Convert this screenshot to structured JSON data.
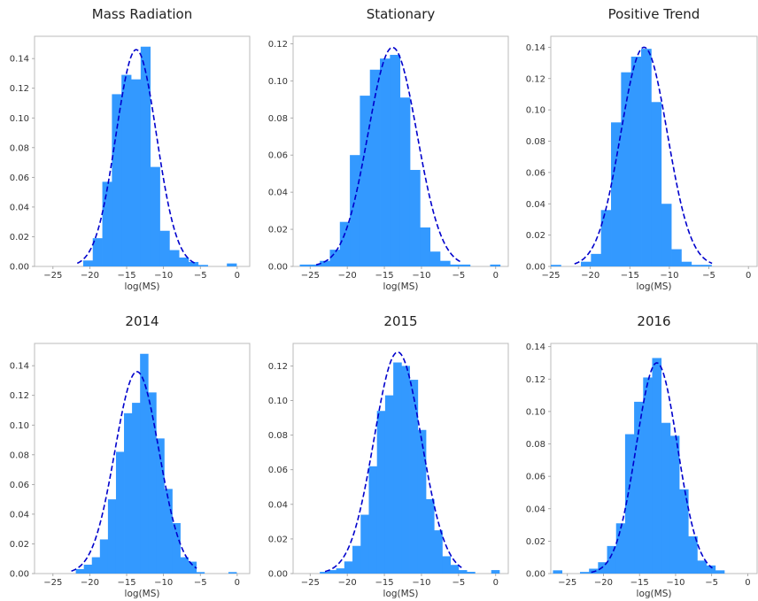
{
  "figure": {
    "bar_color": "#3399ff",
    "fit_color": "#0000cc",
    "axes_color": "#bbbbbb"
  },
  "chart_data": [
    {
      "type": "bar",
      "title": "Mass Radiation",
      "xlabel": "log(MS)",
      "ylabel": "",
      "xlim": [
        -27.5,
        1.7
      ],
      "ylim": [
        0,
        0.155
      ],
      "xticks": [
        -25,
        -20,
        -15,
        -10,
        -5,
        0
      ],
      "yticks": [
        0.0,
        0.02,
        0.04,
        0.06,
        0.08,
        0.1,
        0.12,
        0.14
      ],
      "bin_width": 1.3,
      "bin_edges": [
        -20.9,
        -19.6,
        -18.3,
        -17.0,
        -15.7,
        -14.4,
        -13.1,
        -11.8,
        -10.5,
        -9.2,
        -7.9,
        -6.6,
        -5.3,
        -4.0,
        -2.7,
        -1.4,
        -0.1
      ],
      "values": [
        0.004,
        0.019,
        0.057,
        0.116,
        0.129,
        0.126,
        0.148,
        0.067,
        0.024,
        0.011,
        0.006,
        0.003,
        0.001,
        0.0,
        0.0,
        0.002
      ],
      "fit": {
        "type": "normal",
        "mean": -13.7,
        "peak": 0.146,
        "sigma": 2.75,
        "xrange": [
          -21.7,
          -5.6
        ]
      }
    },
    {
      "type": "bar",
      "title": "Stationary",
      "xlabel": "log(MS)",
      "ylabel": "",
      "xlim": [
        -27.3,
        1.7
      ],
      "ylim": [
        0,
        0.124
      ],
      "xticks": [
        -25,
        -20,
        -15,
        -10,
        -5,
        0
      ],
      "yticks": [
        0.0,
        0.02,
        0.04,
        0.06,
        0.08,
        0.1,
        0.12
      ],
      "bin_width": 1.35,
      "bin_edges": [
        -26.4,
        -25.05,
        -23.7,
        -22.35,
        -21.0,
        -19.65,
        -18.3,
        -16.95,
        -15.6,
        -14.25,
        -12.9,
        -11.55,
        -10.2,
        -8.85,
        -7.5,
        -6.15,
        -4.8,
        -3.45,
        -2.1,
        -0.75,
        0.6
      ],
      "values": [
        0.001,
        0.001,
        0.003,
        0.009,
        0.024,
        0.06,
        0.092,
        0.106,
        0.112,
        0.114,
        0.091,
        0.052,
        0.021,
        0.008,
        0.003,
        0.001,
        0.001,
        0.0,
        0.0,
        0.001
      ],
      "fit": {
        "type": "normal",
        "mean": -13.9,
        "peak": 0.118,
        "sigma": 3.3,
        "xrange": [
          -24.2,
          -4.8
        ]
      }
    },
    {
      "type": "bar",
      "title": "Positive Trend",
      "xlabel": "log(MS)",
      "ylabel": "",
      "xlim": [
        -25.0,
        1.1
      ],
      "ylim": [
        0,
        0.147
      ],
      "xticks": [
        -25,
        -20,
        -15,
        -10,
        -5,
        0
      ],
      "yticks": [
        0.0,
        0.02,
        0.04,
        0.06,
        0.08,
        0.1,
        0.12,
        0.14
      ],
      "bin_width": 1.27,
      "bin_edges": [
        -25.0,
        -23.73,
        -22.46,
        -21.19,
        -19.92,
        -18.65,
        -17.38,
        -16.11,
        -14.84,
        -13.57,
        -12.3,
        -11.03,
        -9.76,
        -8.49,
        -7.22,
        -5.95,
        -4.68,
        -3.41,
        -2.14
      ],
      "values": [
        0.001,
        0.0,
        0.0,
        0.003,
        0.008,
        0.036,
        0.092,
        0.124,
        0.134,
        0.139,
        0.105,
        0.04,
        0.011,
        0.003,
        0.001,
        0.001,
        0.0,
        0.0
      ],
      "fit": {
        "type": "normal",
        "mean": -13.2,
        "peak": 0.14,
        "sigma": 2.95,
        "xrange": [
          -22.0,
          -4.6
        ]
      }
    },
    {
      "type": "bar",
      "title": "2014",
      "xlabel": "log(MS)",
      "ylabel": "",
      "xlim": [
        -27.5,
        1.7
      ],
      "ylim": [
        0,
        0.155
      ],
      "xticks": [
        -25,
        -20,
        -15,
        -10,
        -5,
        0
      ],
      "yticks": [
        0.0,
        0.02,
        0.04,
        0.06,
        0.08,
        0.1,
        0.12,
        0.14
      ],
      "bin_width": 1.09,
      "bin_edges": [
        -21.9,
        -20.81,
        -19.72,
        -18.63,
        -17.54,
        -16.45,
        -15.36,
        -14.27,
        -13.18,
        -12.09,
        -11.0,
        -9.91,
        -8.82,
        -7.73,
        -6.64,
        -5.55,
        -4.46,
        -3.37,
        -2.28,
        -1.19,
        -0.1,
        1.0
      ],
      "values": [
        0.003,
        0.006,
        0.011,
        0.023,
        0.05,
        0.082,
        0.108,
        0.115,
        0.148,
        0.122,
        0.091,
        0.057,
        0.034,
        0.011,
        0.008,
        0.001,
        0.0,
        0.0,
        0.0,
        0.001,
        0.0
      ],
      "fit": {
        "type": "normal",
        "mean": -13.6,
        "peak": 0.136,
        "sigma": 3.0,
        "xrange": [
          -22.5,
          -5.5
        ]
      }
    },
    {
      "type": "bar",
      "title": "2015",
      "xlabel": "log(MS)",
      "ylabel": "",
      "xlim": [
        -27.3,
        1.7
      ],
      "ylim": [
        0,
        0.133
      ],
      "xticks": [
        -25,
        -20,
        -15,
        -10,
        -5,
        0
      ],
      "yticks": [
        0.0,
        0.02,
        0.04,
        0.06,
        0.08,
        0.1,
        0.12
      ],
      "bin_width": 1.1,
      "bin_edges": [
        -23.7,
        -22.6,
        -21.5,
        -20.4,
        -19.3,
        -18.2,
        -17.1,
        -16.0,
        -14.9,
        -13.8,
        -12.7,
        -11.6,
        -10.5,
        -9.4,
        -8.3,
        -7.2,
        -6.1,
        -5.0,
        -3.9,
        -2.8,
        -1.7,
        -0.6,
        0.5
      ],
      "values": [
        0.001,
        0.002,
        0.003,
        0.007,
        0.016,
        0.034,
        0.062,
        0.094,
        0.103,
        0.122,
        0.12,
        0.112,
        0.083,
        0.043,
        0.025,
        0.01,
        0.005,
        0.002,
        0.001,
        0.0,
        0.0,
        0.002
      ],
      "fit": {
        "type": "normal",
        "mean": -13.2,
        "peak": 0.128,
        "sigma": 3.2,
        "xrange": [
          -23.0,
          -4.6
        ]
      }
    },
    {
      "type": "bar",
      "title": "2016",
      "xlabel": "log(MS)",
      "ylabel": "",
      "xlim": [
        -27.3,
        1.3
      ],
      "ylim": [
        0,
        0.142
      ],
      "xticks": [
        -25,
        -20,
        -15,
        -10,
        -5,
        0
      ],
      "yticks": [
        0.0,
        0.02,
        0.04,
        0.06,
        0.08,
        0.1,
        0.12,
        0.14
      ],
      "bin_width": 1.25,
      "bin_edges": [
        -27.0,
        -25.75,
        -24.5,
        -23.25,
        -22.0,
        -20.75,
        -19.5,
        -18.25,
        -17.0,
        -15.75,
        -14.5,
        -13.25,
        -12.0,
        -10.75,
        -9.5,
        -8.25,
        -7.0,
        -5.75,
        -4.5,
        -3.25,
        -2.0
      ],
      "values": [
        0.002,
        0.0,
        0.0,
        0.001,
        0.003,
        0.007,
        0.017,
        0.031,
        0.086,
        0.106,
        0.121,
        0.133,
        0.093,
        0.085,
        0.052,
        0.023,
        0.008,
        0.005,
        0.002,
        0.0
      ],
      "fit": {
        "type": "normal",
        "mean": -12.6,
        "peak": 0.13,
        "sigma": 2.85,
        "xrange": [
          -21.7,
          -4.9
        ]
      }
    }
  ]
}
